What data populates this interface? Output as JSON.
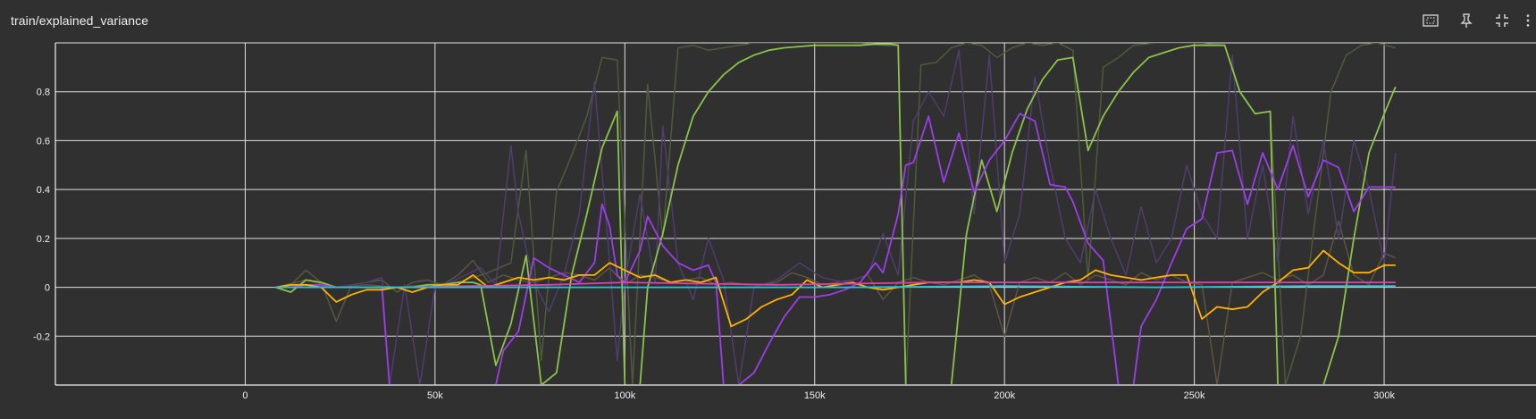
{
  "header": {
    "title": "train/explained_variance",
    "icons": [
      "fit-domain-icon",
      "pin-icon",
      "fullscreen-exit-icon",
      "more-icon"
    ]
  },
  "colors": {
    "background": "#303030",
    "grid": "#e0e0e0",
    "green": "#8bc34a",
    "purple": "#9c3ee8",
    "orange": "#ffb300",
    "magenta": "#e040b0",
    "cyan": "#26c6da",
    "raw_green": "#4f5a3a",
    "raw_purple": "#4f3d6e",
    "raw_olive": "#5b5540"
  },
  "chart_data": {
    "type": "line",
    "title": "train/explained_variance",
    "xlabel": "",
    "ylabel": "",
    "xlim": [
      -50000,
      340000
    ],
    "ylim": [
      -0.4,
      1.0
    ],
    "x_ticks": [
      0,
      50000,
      100000,
      150000,
      200000,
      250000,
      300000
    ],
    "x_tick_labels": [
      "0",
      "50k",
      "100k",
      "150k",
      "200k",
      "250k",
      "300k"
    ],
    "y_ticks": [
      -0.2,
      0,
      0.2,
      0.4,
      0.6,
      0.8
    ],
    "y_tick_labels": [
      "-0.2",
      "0",
      "0.2",
      "0.4",
      "0.6",
      "0.8"
    ],
    "grid": true,
    "series": [
      {
        "color": "raw_olive",
        "x": [
          8000,
          12000,
          16000,
          20000,
          24000,
          28000,
          32000,
          36000,
          40000,
          44000,
          48000,
          52000,
          56000,
          60000,
          64000,
          68000,
          72000,
          76000,
          80000,
          84000,
          88000,
          92000,
          96000,
          100000,
          104000,
          108000,
          112000,
          116000,
          120000,
          124000,
          128000,
          132000,
          136000,
          140000,
          144000,
          148000,
          152000,
          156000,
          160000,
          164000,
          168000,
          172000,
          176000,
          180000,
          184000,
          188000,
          192000,
          196000,
          200000,
          204000,
          208000,
          212000,
          216000,
          220000,
          224000,
          228000,
          232000,
          236000,
          240000,
          244000,
          248000,
          252000,
          256000,
          260000,
          264000,
          268000,
          272000,
          276000,
          280000,
          284000,
          288000,
          292000,
          296000,
          300000,
          303000
        ],
        "y": [
          0,
          0.01,
          0.07,
          0.02,
          -0.14,
          0.01,
          0.02,
          0.03,
          -0.02,
          0.02,
          0.03,
          0.01,
          0.05,
          0.11,
          0.02,
          0.05,
          0.03,
          0.02,
          0.04,
          0.06,
          0.05,
          0.03,
          0.08,
          0.01,
          0.05,
          0.04,
          0.02,
          0.03,
          0.04,
          0.01,
          0.02,
          0.01,
          0.01,
          0.02,
          0.06,
          0.04,
          0.01,
          0.02,
          0.03,
          0.05,
          -0.05,
          0.02,
          0.04,
          0.02,
          0.01,
          0.03,
          0.05,
          0.01,
          -0.2,
          0.02,
          0.04,
          0.02,
          0.06,
          0.01,
          0.05,
          0.03,
          0.01,
          0.06,
          0.03,
          0.05,
          0.02,
          0.01,
          -0.4,
          0.02,
          0.04,
          0.06,
          0.03,
          0.05,
          0.01,
          0.05,
          0.27,
          0.05,
          0.01,
          0.14,
          0.12
        ]
      },
      {
        "color": "raw_green",
        "x": [
          8000,
          16000,
          24000,
          32000,
          40000,
          48000,
          56000,
          64000,
          70000,
          74000,
          78000,
          82000,
          86000,
          90000,
          94000,
          98000,
          102000,
          106000,
          110000,
          114000,
          118000,
          122000,
          126000,
          130000,
          134000,
          140000,
          150000,
          160000,
          168000,
          172000,
          174000,
          178000,
          182000,
          186000,
          190000,
          194000,
          198000,
          202000,
          206000,
          210000,
          214000,
          218000,
          222000,
          226000,
          230000,
          234000,
          240000,
          250000,
          258000,
          262000,
          266000,
          270000,
          274000,
          278000,
          282000,
          286000,
          290000,
          294000,
          298000,
          303000
        ],
        "y": [
          0,
          0.03,
          0.0,
          0.01,
          0.0,
          0.01,
          0.02,
          0.06,
          0.1,
          0.56,
          -0.3,
          0.39,
          0.54,
          0.7,
          0.94,
          0.93,
          -0.4,
          0.83,
          0.2,
          0.98,
          0.99,
          0.97,
          0.98,
          0.99,
          1.0,
          1.0,
          1.0,
          1.0,
          0.99,
          0.99,
          -0.4,
          0.91,
          0.92,
          0.98,
          1.0,
          0.99,
          0.94,
          0.98,
          1.0,
          0.99,
          1.0,
          0.97,
          0.03,
          0.9,
          0.94,
          0.99,
          1.0,
          1.0,
          0.99,
          0.8,
          0.71,
          0.72,
          -0.4,
          -0.2,
          0.3,
          0.8,
          0.95,
          0.99,
          1.0,
          0.98
        ]
      },
      {
        "color": "raw_purple",
        "x": [
          8000,
          16000,
          24000,
          32000,
          36000,
          38000,
          42000,
          46000,
          50000,
          54000,
          58000,
          62000,
          66000,
          70000,
          72000,
          76000,
          80000,
          84000,
          88000,
          92000,
          96000,
          98000,
          100000,
          104000,
          108000,
          110000,
          114000,
          118000,
          122000,
          126000,
          130000,
          134000,
          140000,
          146000,
          152000,
          158000,
          164000,
          168000,
          172000,
          176000,
          180000,
          184000,
          188000,
          192000,
          196000,
          200000,
          204000,
          208000,
          212000,
          216000,
          220000,
          224000,
          228000,
          232000,
          236000,
          240000,
          244000,
          248000,
          252000,
          256000,
          260000,
          264000,
          268000,
          272000,
          276000,
          280000,
          284000,
          288000,
          292000,
          296000,
          300000,
          303000
        ],
        "y": [
          0,
          0.01,
          0.0,
          0.02,
          0.04,
          -0.4,
          0.01,
          -0.4,
          0.0,
          0.02,
          0.05,
          0.08,
          0.01,
          0.58,
          0.3,
          0.02,
          -0.1,
          0.05,
          0.3,
          0.84,
          0.1,
          -0.3,
          0.02,
          0.38,
          0.02,
          0.66,
          0.1,
          -0.05,
          0.2,
          0.03,
          -0.4,
          0.0,
          0.03,
          0.1,
          0.04,
          0.02,
          0.05,
          0.22,
          0.05,
          0.68,
          0.8,
          0.7,
          0.97,
          0.3,
          0.95,
          0.1,
          0.3,
          0.86,
          0.5,
          0.2,
          0.1,
          0.4,
          0.2,
          0.05,
          0.33,
          0.1,
          0.2,
          0.5,
          0.3,
          0.2,
          0.95,
          0.2,
          0.5,
          0.1,
          0.7,
          0.3,
          0.6,
          0.2,
          0.6,
          0.4,
          0.1,
          0.55
        ]
      },
      {
        "color": "green",
        "x": [
          8000,
          12000,
          16000,
          20000,
          24000,
          28000,
          32000,
          36000,
          40000,
          44000,
          48000,
          52000,
          56000,
          60000,
          62000,
          66000,
          70000,
          74000,
          78000,
          82000,
          86000,
          90000,
          94000,
          98000,
          100000,
          102000,
          104000,
          106000,
          110000,
          114000,
          118000,
          122000,
          126000,
          130000,
          134000,
          138000,
          142000,
          146000,
          150000,
          154000,
          158000,
          162000,
          166000,
          170000,
          172000,
          174000,
          178000,
          182000,
          186000,
          190000,
          194000,
          198000,
          202000,
          206000,
          210000,
          214000,
          218000,
          222000,
          226000,
          230000,
          234000,
          238000,
          242000,
          246000,
          250000,
          254000,
          258000,
          262000,
          266000,
          270000,
          272000,
          276000,
          280000,
          284000,
          288000,
          292000,
          296000,
          300000,
          303000
        ],
        "y": [
          0,
          -0.02,
          0.03,
          0.02,
          0.0,
          0.0,
          0.0,
          0.0,
          0.0,
          0.0,
          0.01,
          0.01,
          0.02,
          0.02,
          0.01,
          -0.32,
          -0.15,
          0.13,
          -0.4,
          -0.35,
          0.05,
          0.3,
          0.57,
          0.72,
          -0.4,
          -0.4,
          -0.4,
          0.0,
          0.22,
          0.5,
          0.7,
          0.8,
          0.87,
          0.92,
          0.95,
          0.97,
          0.98,
          0.985,
          0.99,
          0.99,
          0.99,
          0.99,
          0.995,
          0.995,
          0.99,
          -0.4,
          -0.4,
          -0.4,
          -0.4,
          0.22,
          0.52,
          0.31,
          0.55,
          0.73,
          0.85,
          0.93,
          0.94,
          0.56,
          0.7,
          0.8,
          0.88,
          0.94,
          0.96,
          0.98,
          0.99,
          0.99,
          0.99,
          0.8,
          0.71,
          0.72,
          -0.4,
          -0.4,
          -0.4,
          -0.4,
          -0.2,
          0.2,
          0.55,
          0.71,
          0.82
        ]
      },
      {
        "color": "purple",
        "x": [
          8000,
          12000,
          16000,
          20000,
          24000,
          28000,
          32000,
          36000,
          38000,
          40000,
          44000,
          48000,
          52000,
          56000,
          58000,
          60000,
          62000,
          64000,
          66000,
          68000,
          72000,
          76000,
          80000,
          84000,
          88000,
          92000,
          94000,
          96000,
          98000,
          100000,
          104000,
          106000,
          110000,
          114000,
          118000,
          122000,
          124000,
          126000,
          130000,
          134000,
          138000,
          142000,
          146000,
          150000,
          154000,
          158000,
          162000,
          166000,
          168000,
          172000,
          174000,
          176000,
          180000,
          184000,
          188000,
          192000,
          196000,
          200000,
          204000,
          208000,
          212000,
          216000,
          218000,
          222000,
          226000,
          230000,
          234000,
          236000,
          240000,
          244000,
          248000,
          252000,
          256000,
          260000,
          264000,
          268000,
          272000,
          276000,
          280000,
          284000,
          288000,
          292000,
          296000,
          300000,
          303000
        ],
        "y": [
          0,
          0.0,
          0.01,
          0.01,
          0.0,
          0.0,
          0.0,
          0.0,
          -0.4,
          -0.4,
          -0.4,
          -0.4,
          -0.4,
          -0.4,
          -0.4,
          -0.4,
          -0.4,
          -0.4,
          -0.4,
          -0.26,
          -0.18,
          0.12,
          0.08,
          0.05,
          0.02,
          0.1,
          0.34,
          0.25,
          0.05,
          0.02,
          0.15,
          0.29,
          0.17,
          0.1,
          0.07,
          0.09,
          0.02,
          -0.4,
          -0.4,
          -0.35,
          -0.23,
          -0.12,
          -0.04,
          -0.04,
          -0.03,
          -0.01,
          0.02,
          0.1,
          0.06,
          0.3,
          0.5,
          0.51,
          0.7,
          0.43,
          0.63,
          0.39,
          0.52,
          0.6,
          0.71,
          0.68,
          0.42,
          0.41,
          0.35,
          0.18,
          0.11,
          -0.4,
          -0.4,
          -0.16,
          -0.05,
          0.1,
          0.24,
          0.28,
          0.55,
          0.56,
          0.34,
          0.55,
          0.4,
          0.58,
          0.37,
          0.52,
          0.49,
          0.31,
          0.41,
          0.41,
          0.41
        ]
      },
      {
        "color": "orange",
        "x": [
          8000,
          12000,
          16000,
          20000,
          24000,
          28000,
          32000,
          36000,
          40000,
          44000,
          48000,
          52000,
          56000,
          60000,
          64000,
          68000,
          72000,
          76000,
          80000,
          84000,
          88000,
          92000,
          96000,
          100000,
          104000,
          108000,
          112000,
          116000,
          120000,
          124000,
          128000,
          132000,
          136000,
          140000,
          144000,
          148000,
          152000,
          156000,
          160000,
          164000,
          168000,
          172000,
          176000,
          180000,
          184000,
          188000,
          192000,
          196000,
          200000,
          204000,
          208000,
          212000,
          216000,
          220000,
          224000,
          228000,
          232000,
          236000,
          240000,
          244000,
          248000,
          252000,
          256000,
          260000,
          264000,
          268000,
          272000,
          276000,
          280000,
          284000,
          288000,
          292000,
          296000,
          300000,
          303000
        ],
        "y": [
          0,
          0.01,
          0.01,
          0.0,
          -0.06,
          -0.03,
          -0.01,
          -0.01,
          0.0,
          -0.02,
          0.0,
          0.01,
          0.01,
          0.05,
          0.0,
          0.02,
          0.04,
          0.03,
          0.04,
          0.03,
          0.05,
          0.05,
          0.1,
          0.07,
          0.04,
          0.05,
          0.02,
          0.03,
          0.02,
          0.04,
          -0.16,
          -0.13,
          -0.08,
          -0.05,
          -0.03,
          0.03,
          0.0,
          0.01,
          0.02,
          0.0,
          -0.01,
          0.0,
          0.01,
          0.02,
          0.02,
          0.02,
          0.03,
          0.02,
          -0.07,
          -0.04,
          -0.02,
          0.0,
          0.02,
          0.03,
          0.07,
          0.05,
          0.04,
          0.03,
          0.04,
          0.05,
          0.05,
          -0.13,
          -0.08,
          -0.09,
          -0.08,
          -0.02,
          0.02,
          0.07,
          0.08,
          0.15,
          0.1,
          0.06,
          0.06,
          0.09,
          0.09
        ]
      },
      {
        "color": "magenta",
        "x": [
          8000,
          20000,
          40000,
          60000,
          80000,
          100000,
          120000,
          140000,
          160000,
          180000,
          200000,
          220000,
          240000,
          260000,
          280000,
          303000
        ],
        "y": [
          0,
          0.0,
          0.0,
          0.005,
          0.01,
          0.02,
          0.015,
          0.01,
          0.015,
          0.02,
          0.02,
          0.02,
          0.02,
          0.02,
          0.02,
          0.02
        ]
      },
      {
        "color": "cyan",
        "x": [
          8000,
          40000,
          80000,
          120000,
          160000,
          200000,
          240000,
          280000,
          303000
        ],
        "y": [
          0,
          0.0,
          0.0,
          0.0,
          0.0,
          0.005,
          0.0,
          0.005,
          0.005
        ]
      }
    ]
  }
}
